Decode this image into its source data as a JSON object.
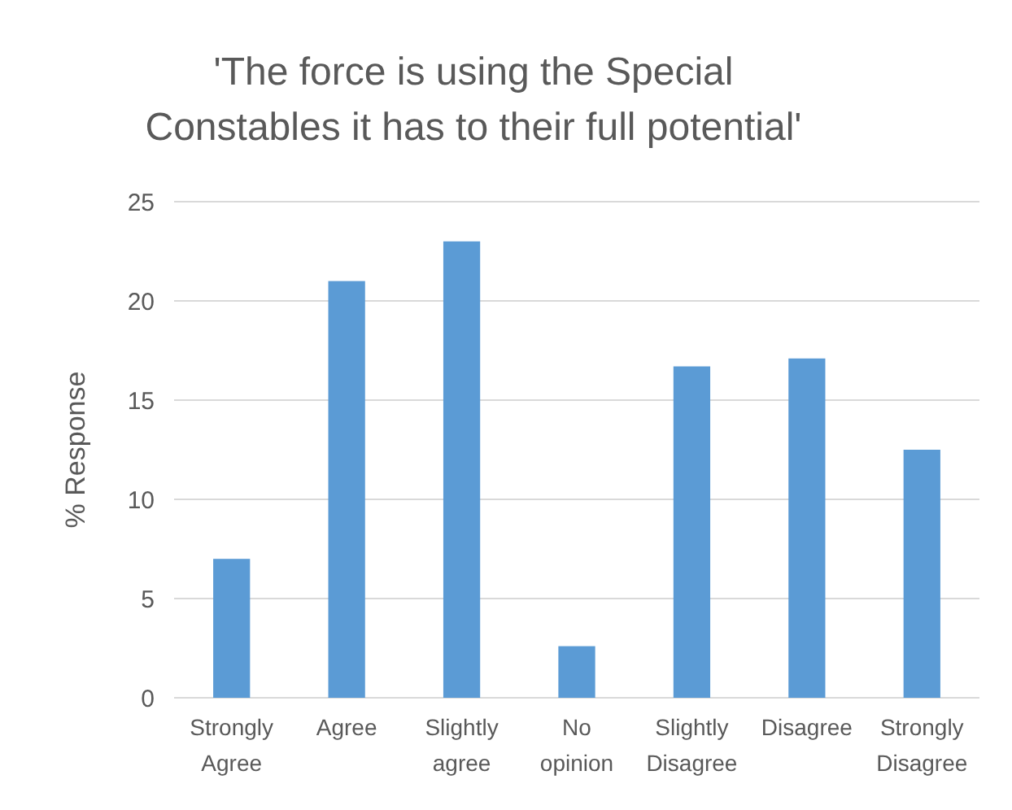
{
  "chart_data": {
    "type": "bar",
    "title": "'The force is using the Special Constables it has to their full potential'",
    "ylabel": "% Response",
    "categories": [
      "Strongly Agree",
      "Agree",
      "Slightly agree",
      "No opinion",
      "Slightly Disagree",
      "Disagree",
      "Strongly Disagree"
    ],
    "values": [
      7.0,
      21.0,
      23.0,
      2.6,
      16.7,
      17.1,
      12.5
    ],
    "color": "#5b9bd5",
    "ylim": [
      0,
      25
    ],
    "yticks": [
      0,
      5,
      10,
      15,
      20,
      25
    ],
    "grid": "y"
  }
}
